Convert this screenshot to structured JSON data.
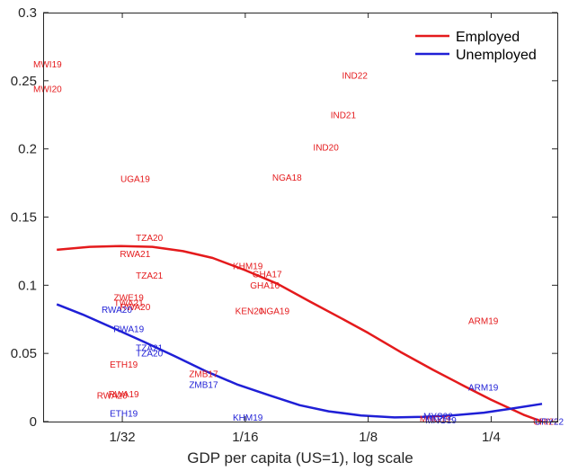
{
  "chart_data": {
    "type": "scatter",
    "title": "",
    "xlabel": "GDP per capita (US=1), log scale",
    "ylabel": "",
    "x_scale": "log2",
    "xlim": [
      0.02,
      0.363
    ],
    "ylim": [
      0,
      0.3
    ],
    "x_ticks": [
      {
        "value": 0.03125,
        "label": "1/32"
      },
      {
        "value": 0.0625,
        "label": "1/16"
      },
      {
        "value": 0.125,
        "label": "1/8"
      },
      {
        "value": 0.25,
        "label": "1/4"
      }
    ],
    "y_ticks": [
      {
        "value": 0,
        "label": "0"
      },
      {
        "value": 0.05,
        "label": "0.05"
      },
      {
        "value": 0.1,
        "label": "0.1"
      },
      {
        "value": 0.15,
        "label": "0.15"
      },
      {
        "value": 0.2,
        "label": "0.2"
      },
      {
        "value": 0.25,
        "label": "0.25"
      },
      {
        "value": 0.3,
        "label": "0.3"
      }
    ],
    "grid": false,
    "legend_position": "top-right",
    "colors": {
      "employed": "#e41a1c",
      "unemployed": "#1f1fd6",
      "axis": "#262626"
    },
    "series": [
      {
        "name": "Employed",
        "color": "#e41a1c",
        "fit_line": [
          {
            "x": 0.0216,
            "y": 0.126
          },
          {
            "x": 0.026,
            "y": 0.1282
          },
          {
            "x": 0.031,
            "y": 0.1288
          },
          {
            "x": 0.037,
            "y": 0.1282
          },
          {
            "x": 0.044,
            "y": 0.125
          },
          {
            "x": 0.052,
            "y": 0.12
          },
          {
            "x": 0.0625,
            "y": 0.111
          },
          {
            "x": 0.075,
            "y": 0.101
          },
          {
            "x": 0.09,
            "y": 0.088
          },
          {
            "x": 0.107,
            "y": 0.076
          },
          {
            "x": 0.125,
            "y": 0.065
          },
          {
            "x": 0.15,
            "y": 0.051
          },
          {
            "x": 0.18,
            "y": 0.038
          },
          {
            "x": 0.215,
            "y": 0.026
          },
          {
            "x": 0.25,
            "y": 0.016
          },
          {
            "x": 0.3,
            "y": 0.005
          },
          {
            "x": 0.333,
            "y": 0
          }
        ],
        "points": [
          {
            "label": "MWI19",
            "x": 0.0205,
            "y": 0.262
          },
          {
            "label": "MWI20",
            "x": 0.0205,
            "y": 0.244
          },
          {
            "label": "UGA19",
            "x": 0.0336,
            "y": 0.178
          },
          {
            "label": "TZA20",
            "x": 0.0364,
            "y": 0.135
          },
          {
            "label": "RWA21",
            "x": 0.0336,
            "y": 0.123
          },
          {
            "label": "TZA21",
            "x": 0.0364,
            "y": 0.107
          },
          {
            "label": "ZWE19",
            "x": 0.0324,
            "y": 0.091
          },
          {
            "label": "TWA21",
            "x": 0.0324,
            "y": 0.087
          },
          {
            "label": "RWA20",
            "x": 0.0336,
            "y": 0.084
          },
          {
            "label": "ETH19",
            "x": 0.0315,
            "y": 0.042
          },
          {
            "label": "RWA19",
            "x": 0.0315,
            "y": 0.02
          },
          {
            "label": "RWA20",
            "x": 0.0295,
            "y": 0.019
          },
          {
            "label": "ZMB17",
            "x": 0.0494,
            "y": 0.035
          },
          {
            "label": "KHM19",
            "x": 0.0634,
            "y": 0.114
          },
          {
            "label": "GHA17",
            "x": 0.0707,
            "y": 0.108
          },
          {
            "label": "GHA16",
            "x": 0.0698,
            "y": 0.1
          },
          {
            "label": "KEN20",
            "x": 0.064,
            "y": 0.081
          },
          {
            "label": "NGA19",
            "x": 0.0738,
            "y": 0.081
          },
          {
            "label": "NGA18",
            "x": 0.0791,
            "y": 0.179
          },
          {
            "label": "IND20",
            "x": 0.0985,
            "y": 0.201
          },
          {
            "label": "IND21",
            "x": 0.1086,
            "y": 0.225
          },
          {
            "label": "IND22",
            "x": 0.1159,
            "y": 0.254
          },
          {
            "label": "ARM19",
            "x": 0.2392,
            "y": 0.074
          },
          {
            "label": "MNG19",
            "x": 0.1823,
            "y": 0.002
          },
          {
            "label": "CRI22",
            "x": 0.3403,
            "y": 0.0
          }
        ]
      },
      {
        "name": "Unemployed",
        "color": "#1f1fd6",
        "fit_line": [
          {
            "x": 0.0216,
            "y": 0.086
          },
          {
            "x": 0.025,
            "y": 0.0785
          },
          {
            "x": 0.03,
            "y": 0.068
          },
          {
            "x": 0.035,
            "y": 0.059
          },
          {
            "x": 0.042,
            "y": 0.048
          },
          {
            "x": 0.05,
            "y": 0.037
          },
          {
            "x": 0.06,
            "y": 0.027
          },
          {
            "x": 0.072,
            "y": 0.019
          },
          {
            "x": 0.085,
            "y": 0.012
          },
          {
            "x": 0.1,
            "y": 0.0075
          },
          {
            "x": 0.12,
            "y": 0.0045
          },
          {
            "x": 0.145,
            "y": 0.003
          },
          {
            "x": 0.17,
            "y": 0.0035
          },
          {
            "x": 0.2,
            "y": 0.0045
          },
          {
            "x": 0.24,
            "y": 0.0065
          },
          {
            "x": 0.28,
            "y": 0.0095
          },
          {
            "x": 0.333,
            "y": 0.013
          }
        ],
        "points": [
          {
            "label": "RWA20",
            "x": 0.0303,
            "y": 0.082
          },
          {
            "label": "RWA19",
            "x": 0.0324,
            "y": 0.068
          },
          {
            "label": "TZA21",
            "x": 0.0364,
            "y": 0.054
          },
          {
            "label": "TZA20",
            "x": 0.0364,
            "y": 0.05
          },
          {
            "label": "ZMB17",
            "x": 0.0494,
            "y": 0.027
          },
          {
            "label": "ETH19",
            "x": 0.0315,
            "y": 0.006
          },
          {
            "label": "KHM19",
            "x": 0.0634,
            "y": 0.003
          },
          {
            "label": "ARM19",
            "x": 0.2392,
            "y": 0.025
          },
          {
            "label": "MYS22",
            "x": 0.1854,
            "y": 0.004
          },
          {
            "label": "MNG19",
            "x": 0.1884,
            "y": 0.001
          },
          {
            "label": "URY22",
            "x": 0.3469,
            "y": 0.0
          }
        ]
      }
    ]
  }
}
